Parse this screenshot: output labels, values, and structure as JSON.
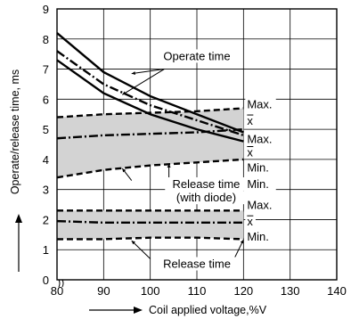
{
  "chart_data": {
    "type": "line",
    "xlabel": "Coil applied voltage,%V",
    "ylabel": "Operate/release time, ms",
    "xlim": [
      80,
      140
    ],
    "ylim": [
      0,
      9
    ],
    "xticks": [
      80,
      90,
      100,
      110,
      120,
      130,
      140
    ],
    "yticks": [
      0,
      1,
      2,
      3,
      4,
      5,
      6,
      7,
      8,
      9
    ],
    "grid": true,
    "series": [
      {
        "group": "operate",
        "stat": "max",
        "style": "solid",
        "x": [
          80,
          90,
          100,
          110,
          120
        ],
        "y": [
          8.2,
          6.9,
          6.1,
          5.5,
          4.9
        ]
      },
      {
        "group": "operate",
        "stat": "mean",
        "style": "dashdot",
        "x": [
          80,
          90,
          100,
          110,
          120
        ],
        "y": [
          7.6,
          6.5,
          5.8,
          5.3,
          4.8
        ]
      },
      {
        "group": "operate",
        "stat": "min",
        "style": "solid",
        "x": [
          80,
          90,
          100,
          110,
          120
        ],
        "y": [
          7.3,
          6.2,
          5.5,
          5.0,
          4.6
        ]
      },
      {
        "group": "release_diode",
        "stat": "max",
        "style": "dashed",
        "x": [
          80,
          90,
          100,
          110,
          120
        ],
        "y": [
          5.4,
          5.5,
          5.55,
          5.6,
          5.7
        ]
      },
      {
        "group": "release_diode",
        "stat": "mean",
        "style": "dashdot",
        "x": [
          80,
          90,
          100,
          110,
          120
        ],
        "y": [
          4.7,
          4.8,
          4.85,
          4.9,
          5.0
        ]
      },
      {
        "group": "release_diode",
        "stat": "min",
        "style": "dashed",
        "x": [
          80,
          90,
          100,
          110,
          120
        ],
        "y": [
          3.4,
          3.65,
          3.8,
          3.9,
          4.0
        ]
      },
      {
        "group": "release",
        "stat": "max",
        "style": "dashed",
        "x": [
          80,
          90,
          100,
          110,
          120
        ],
        "y": [
          2.3,
          2.3,
          2.3,
          2.3,
          2.3
        ]
      },
      {
        "group": "release",
        "stat": "mean",
        "style": "dashdot",
        "x": [
          80,
          90,
          100,
          110,
          120
        ],
        "y": [
          1.95,
          1.9,
          1.9,
          1.9,
          1.9
        ]
      },
      {
        "group": "release",
        "stat": "min",
        "style": "dashed",
        "x": [
          80,
          90,
          100,
          110,
          120
        ],
        "y": [
          1.35,
          1.35,
          1.4,
          1.4,
          1.35
        ]
      }
    ],
    "bands": [
      {
        "group": "release_diode",
        "fill": "#d3d3d3"
      },
      {
        "group": "release",
        "fill": "#d3d3d3"
      }
    ],
    "annotations": [
      {
        "text": "Operate time",
        "x": 110,
        "y": 7.3
      },
      {
        "text": "Release time",
        "x": 112,
        "y": 3.05
      },
      {
        "text": "(with diode)",
        "x": 112,
        "y": 2.6
      },
      {
        "text": "Release time",
        "x": 110,
        "y": 0.4
      }
    ],
    "right_labels": [
      {
        "text": "Max.",
        "y": 5.7
      },
      {
        "text": "x",
        "y": 5.15
      },
      {
        "text": "Max.",
        "y": 4.55
      },
      {
        "text": "x",
        "y": 4.1
      },
      {
        "text": "Min.",
        "y": 3.6
      },
      {
        "text": "Min.",
        "y": 3.05
      },
      {
        "text": "Max.",
        "y": 2.35
      },
      {
        "text": "x",
        "y": 1.8
      },
      {
        "text": "Min.",
        "y": 1.3
      }
    ]
  }
}
